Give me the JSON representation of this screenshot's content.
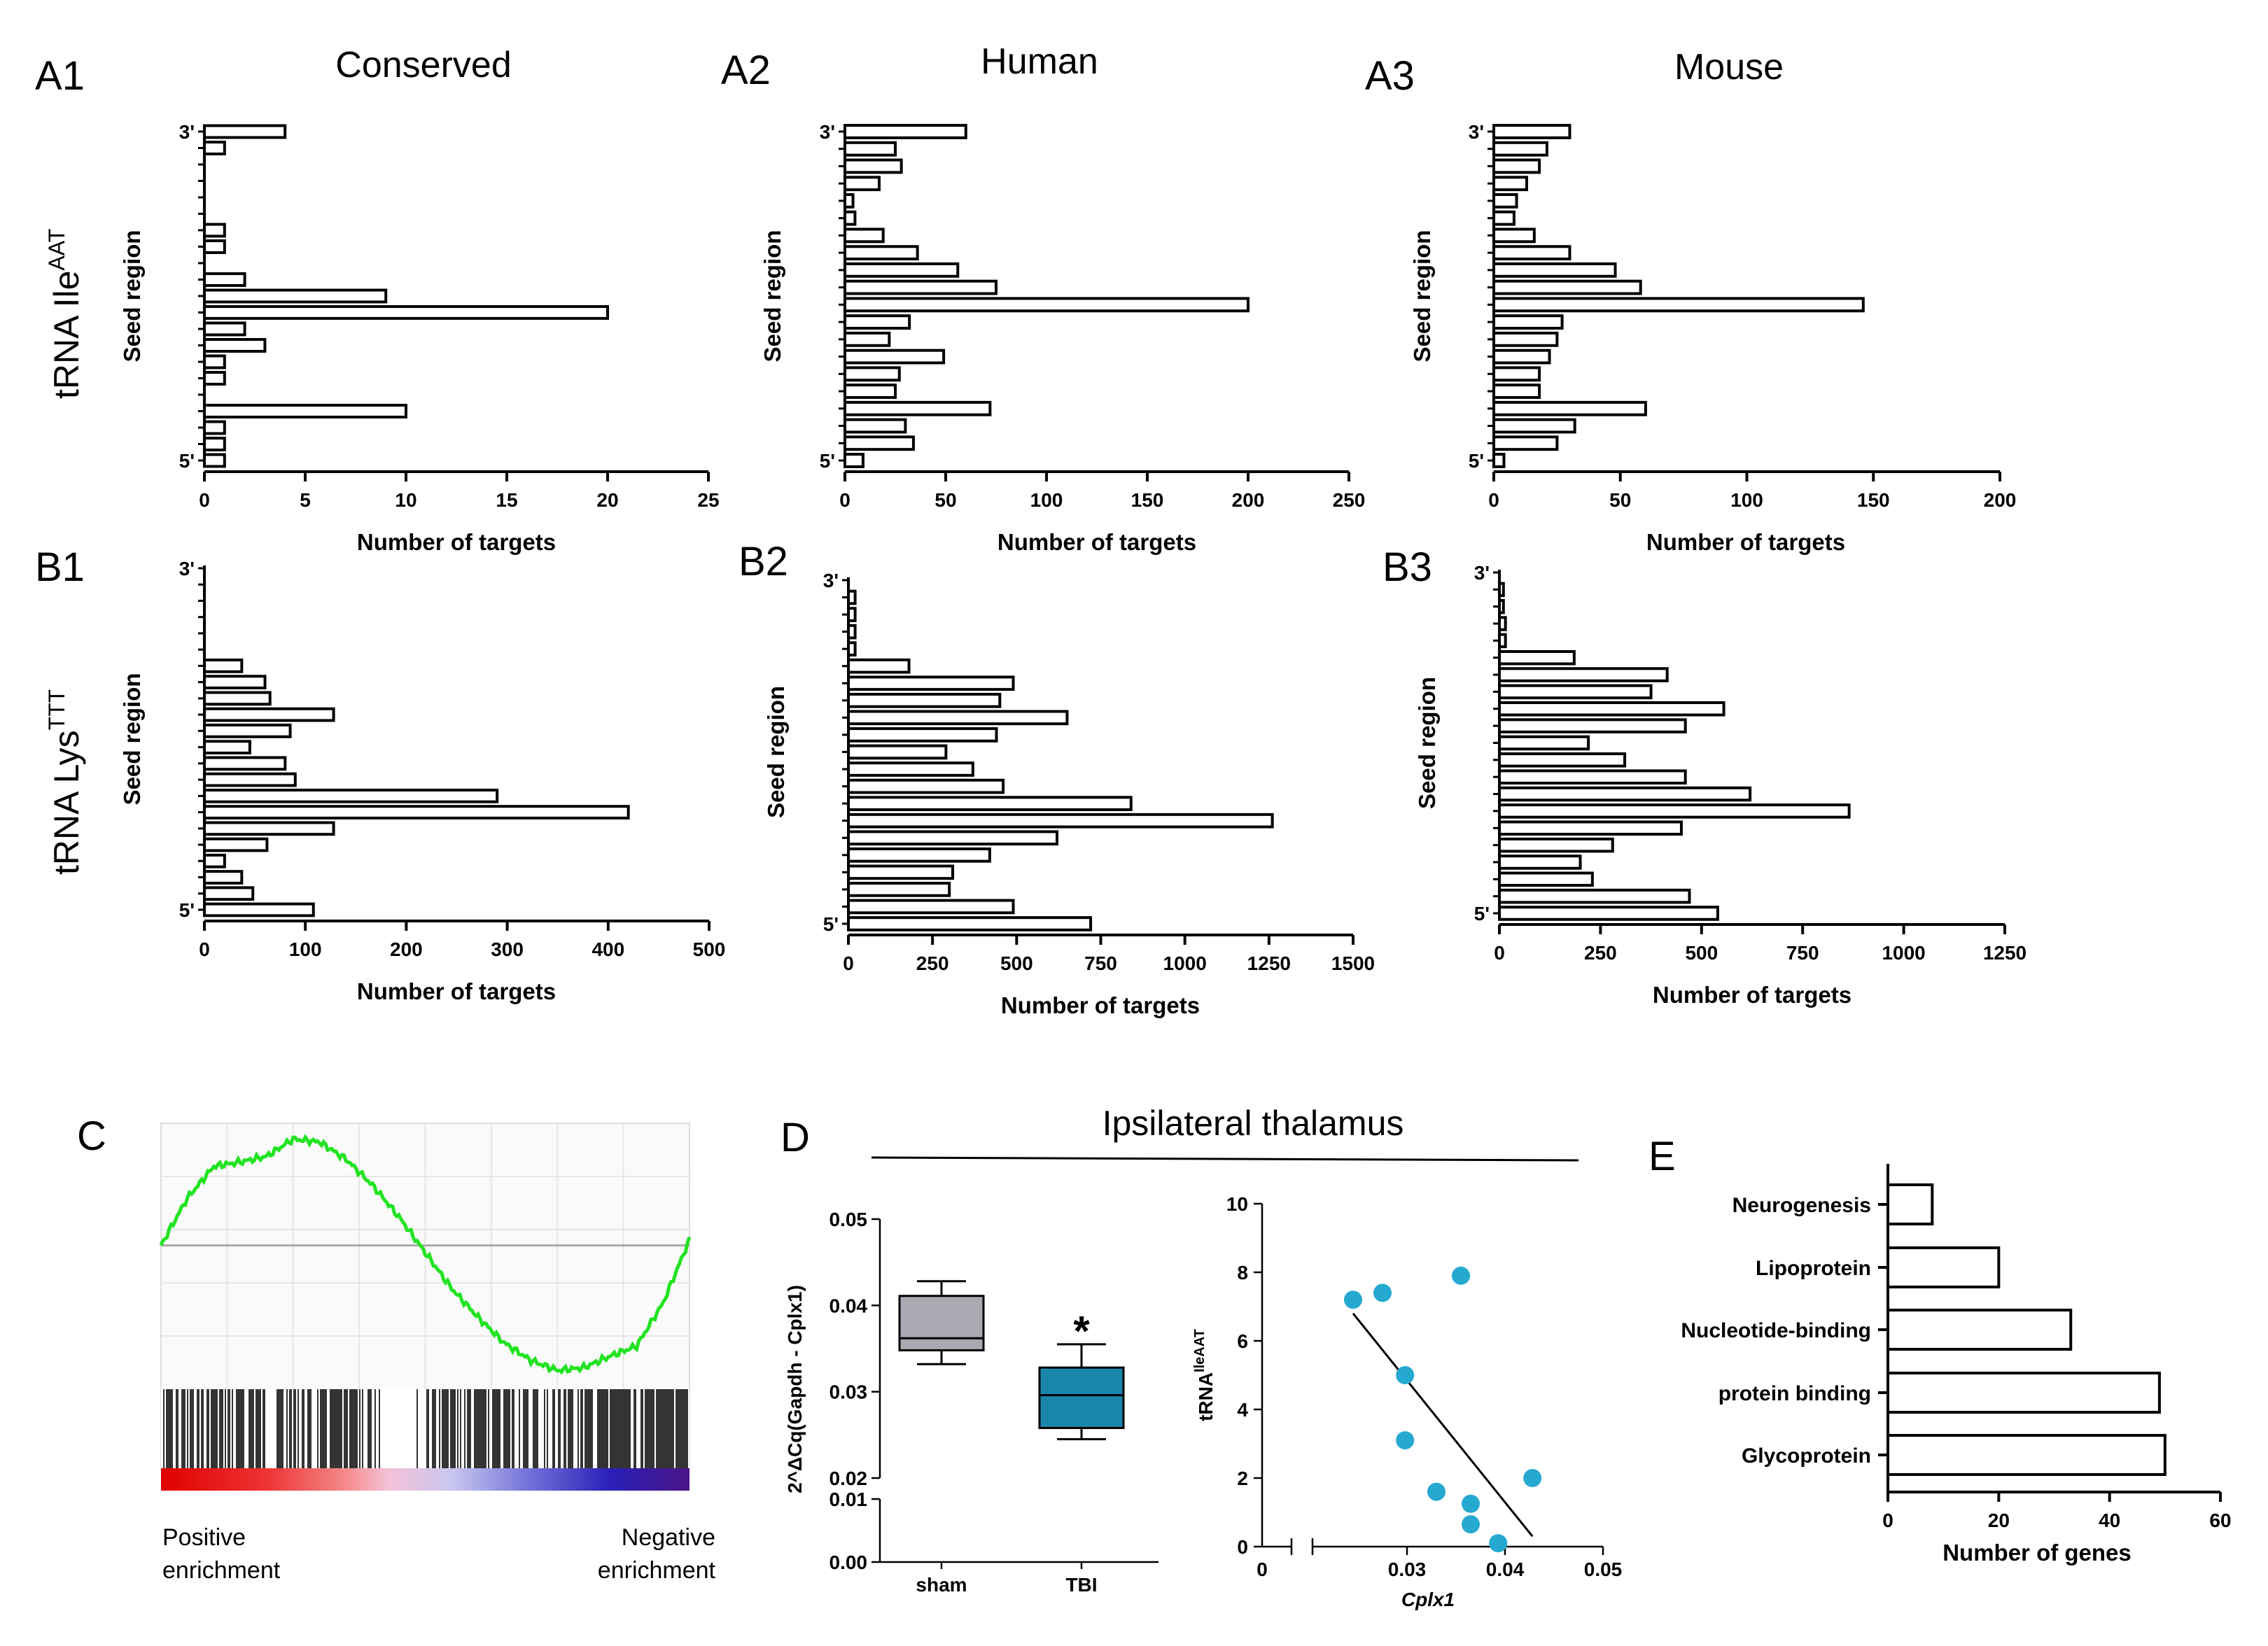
{
  "figure": {
    "panel_A1": "A1",
    "panel_A2": "A2",
    "panel_A3": "A3",
    "panel_B1": "B1",
    "panel_B2": "B2",
    "panel_B3": "B3",
    "panel_C": "C",
    "panel_D": "D",
    "panel_E": "E",
    "col_conserved": "Conserved",
    "col_human": "Human",
    "col_mouse": "Mouse",
    "row_a_prefix": "tRNA Ile",
    "row_a_sup": "AAT",
    "row_b_prefix": "tRNA Lys",
    "row_b_sup": "TTT",
    "gsea_positive_line1": "Positive",
    "gsea_positive_line2": "enrichment",
    "gsea_negative_line1": "Negative",
    "gsea_negative_line2": "enrichment",
    "d_title": "Ipsilateral thalamus"
  },
  "chart_data": [
    {
      "id": "A1",
      "type": "bar",
      "orientation": "horizontal",
      "title": "Conserved",
      "xlabel": "Number of targets",
      "ylabel": "Seed region",
      "y_top_label": "3'",
      "y_bottom_label": "5'",
      "xlim": [
        0,
        25
      ],
      "xticks": [
        0,
        5,
        10,
        15,
        20,
        25
      ],
      "values_3_to_5": [
        4,
        1,
        0,
        0,
        0,
        0,
        1,
        1,
        0,
        2,
        9,
        20,
        2,
        3,
        1,
        1,
        0,
        10,
        1,
        1,
        1
      ]
    },
    {
      "id": "A2",
      "type": "bar",
      "orientation": "horizontal",
      "title": "Human",
      "xlabel": "Number of targets",
      "ylabel": "Seed region",
      "y_top_label": "3'",
      "y_bottom_label": "5'",
      "xlim": [
        0,
        250
      ],
      "xticks": [
        0,
        50,
        100,
        150,
        200,
        250
      ],
      "values_3_to_5": [
        60,
        25,
        28,
        17,
        4,
        5,
        19,
        36,
        56,
        75,
        200,
        32,
        22,
        49,
        27,
        25,
        72,
        30,
        34,
        9
      ]
    },
    {
      "id": "A3",
      "type": "bar",
      "orientation": "horizontal",
      "title": "Mouse",
      "xlabel": "Number of targets",
      "ylabel": "Seed region",
      "y_top_label": "3'",
      "y_bottom_label": "5'",
      "xlim": [
        0,
        200
      ],
      "xticks": [
        0,
        50,
        100,
        150,
        200
      ],
      "values_3_to_5": [
        30,
        21,
        18,
        13,
        9,
        8,
        16,
        30,
        48,
        58,
        146,
        27,
        25,
        22,
        18,
        18,
        60,
        32,
        25,
        4
      ]
    },
    {
      "id": "B1",
      "type": "bar",
      "orientation": "horizontal",
      "xlabel": "Number of targets",
      "ylabel": "Seed region",
      "y_top_label": "3'",
      "y_bottom_label": "5'",
      "xlim": [
        0,
        500
      ],
      "xticks": [
        0,
        100,
        200,
        300,
        400,
        500
      ],
      "values_3_to_5": [
        0,
        0,
        0,
        0,
        0,
        0,
        37,
        60,
        65,
        128,
        85,
        45,
        80,
        90,
        290,
        420,
        128,
        62,
        20,
        37,
        48,
        108
      ]
    },
    {
      "id": "B2",
      "type": "bar",
      "orientation": "horizontal",
      "xlabel": "Number of targets",
      "ylabel": "Seed region",
      "y_top_label": "3'",
      "y_bottom_label": "5'",
      "xlim": [
        0,
        1500
      ],
      "xticks": [
        0,
        250,
        500,
        750,
        1000,
        1250,
        1500
      ],
      "values_3_to_5": [
        0,
        20,
        20,
        20,
        20,
        180,
        490,
        450,
        650,
        440,
        290,
        370,
        460,
        840,
        1260,
        620,
        420,
        310,
        300,
        490,
        720
      ]
    },
    {
      "id": "B3",
      "type": "bar",
      "orientation": "horizontal",
      "xlabel": "Number of targets",
      "ylabel": "Seed region",
      "y_top_label": "3'",
      "y_bottom_label": "5'",
      "xlim": [
        0,
        1250
      ],
      "xticks": [
        0,
        250,
        500,
        750,
        1000,
        1250
      ],
      "values_3_to_5": [
        0,
        10,
        10,
        15,
        15,
        185,
        415,
        375,
        555,
        460,
        220,
        310,
        460,
        620,
        865,
        450,
        280,
        200,
        230,
        470,
        540
      ]
    },
    {
      "id": "D_box",
      "type": "box",
      "ylabel": "2^ΔCq(Gapdh - Cplx1)",
      "categories": [
        "sham",
        "TBI"
      ],
      "boxes": [
        {
          "min": 0.0332,
          "q1": 0.0348,
          "median": 0.0362,
          "q3": 0.0411,
          "max": 0.0428,
          "color": "#a9a9b2"
        },
        {
          "min": 0.0245,
          "q1": 0.0258,
          "median": 0.0296,
          "q3": 0.0328,
          "max": 0.0355,
          "color": "#1b86ad"
        }
      ],
      "significance": "*",
      "yticks_upper": [
        "0.02",
        "0.03",
        "0.04",
        "0.05"
      ],
      "yticks_lower": [
        "0.00",
        "0.01"
      ],
      "ylim_upper": [
        0.02,
        0.05
      ],
      "ylim_lower": [
        0.0,
        0.01
      ]
    },
    {
      "id": "D_scatter",
      "type": "scatter",
      "xlabel": "Cplx1",
      "ylabel_prefix": "tRNA",
      "ylabel_sup": "IleAAT",
      "xlim": [
        0.015,
        0.05
      ],
      "ylim": [
        0,
        10
      ],
      "xticks": [
        "0",
        "0.03",
        "0.04",
        "0.05"
      ],
      "yticks": [
        0,
        2,
        4,
        6,
        8,
        10
      ],
      "x": [
        0.0245,
        0.0275,
        0.0355,
        0.0298,
        0.0298,
        0.033,
        0.0365,
        0.0365,
        0.0393,
        0.0428
      ],
      "y": [
        7.2,
        7.4,
        7.9,
        5.0,
        3.1,
        1.6,
        1.25,
        0.65,
        0.1,
        2.0
      ],
      "regression": {
        "x0": 0.0245,
        "y0": 6.8,
        "x1": 0.0428,
        "y1": 0.3
      },
      "point_color": "#26a9d1"
    },
    {
      "id": "E",
      "type": "bar",
      "orientation": "horizontal",
      "xlabel": "Number of genes",
      "categories": [
        "Neurogenesis",
        "Lipoprotein",
        "Nucleotide-binding",
        "protein binding",
        "Glycoprotein"
      ],
      "values": [
        8,
        20,
        33,
        49,
        50
      ],
      "xlim": [
        0,
        60
      ],
      "xticks": [
        0,
        20,
        40,
        60
      ]
    },
    {
      "id": "C",
      "type": "line",
      "description_labels": [
        "Positive enrichment",
        "Negative enrichment"
      ],
      "x": [
        0,
        0.05,
        0.1,
        0.15,
        0.2,
        0.25,
        0.3,
        0.35,
        0.4,
        0.45,
        0.5,
        0.55,
        0.6,
        0.65,
        0.7,
        0.75,
        0.8,
        0.85,
        0.9,
        0.95,
        1.0
      ],
      "y": [
        0,
        0.33,
        0.55,
        0.58,
        0.62,
        0.74,
        0.72,
        0.6,
        0.42,
        0.2,
        -0.05,
        -0.3,
        -0.5,
        -0.68,
        -0.8,
        -0.87,
        -0.85,
        -0.77,
        -0.7,
        -0.4,
        0.04
      ],
      "ylim": [
        -1.0,
        0.85
      ],
      "line_color": "#22e322"
    }
  ]
}
